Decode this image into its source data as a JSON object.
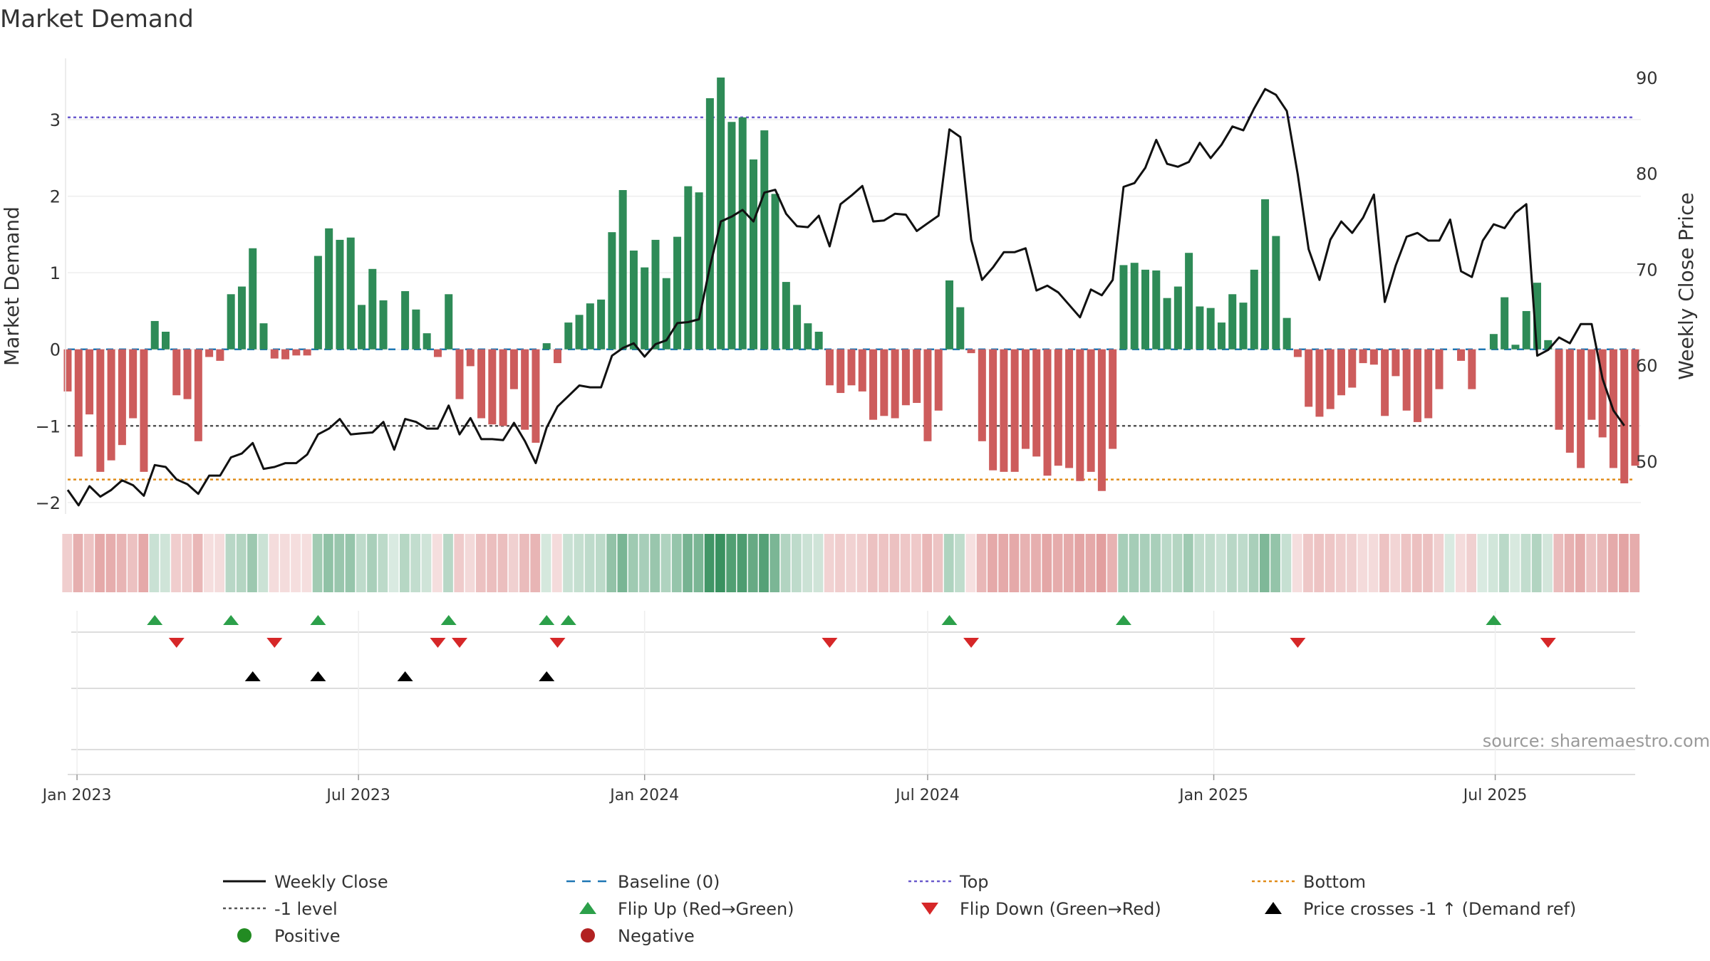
{
  "title": "Market Demand",
  "source": "source: sharemaestro.com",
  "colors": {
    "pos": "#2e8b57",
    "neg": "#cd5c5c",
    "line": "#111111",
    "top": "#6a5acd",
    "bottom": "#e08c1a",
    "ref": "#555555",
    "baseline": "#1f77b4",
    "flip_up": "#2ca04a",
    "flip_down": "#d62728"
  },
  "chart_data": {
    "type": "bar",
    "x_start": "2022-12-26",
    "x_step_days": 7,
    "xticks": [
      {
        "label": "Jan 2023",
        "date": "2023-01-01"
      },
      {
        "label": "Jul 2023",
        "date": "2023-07-01"
      },
      {
        "label": "Jan 2024",
        "date": "2024-01-01"
      },
      {
        "label": "Jul 2024",
        "date": "2024-07-01"
      },
      {
        "label": "Jan 2025",
        "date": "2025-01-01"
      },
      {
        "label": "Jul 2025",
        "date": "2025-07-01"
      }
    ],
    "left_axis": {
      "label": "Market Demand",
      "ylim": [
        -2.15,
        3.8
      ],
      "ticks": [
        -2,
        -1,
        0,
        1,
        2,
        3
      ]
    },
    "right_axis": {
      "label": "Weekly Close Price",
      "ylim": [
        44.5,
        92.0
      ],
      "ticks": [
        50,
        60,
        70,
        80,
        90
      ]
    },
    "top_level": 3.03,
    "bottom_level": -1.7,
    "ref_level": -1.0,
    "demand": [
      -0.55,
      -1.4,
      -0.85,
      -1.6,
      -1.45,
      -1.25,
      -0.9,
      -1.6,
      0.37,
      0.23,
      -0.6,
      -0.65,
      -1.2,
      -0.1,
      -0.15,
      0.72,
      0.82,
      1.32,
      0.34,
      -0.12,
      -0.13,
      -0.08,
      -0.08,
      1.22,
      1.58,
      1.43,
      1.46,
      0.58,
      1.05,
      0.64,
      0.0,
      0.76,
      0.52,
      0.21,
      -0.1,
      0.72,
      -0.65,
      -0.22,
      -0.9,
      -0.98,
      -1.0,
      -0.52,
      -1.05,
      -1.22,
      0.08,
      -0.18,
      0.35,
      0.45,
      0.6,
      0.65,
      1.53,
      2.08,
      1.29,
      1.07,
      1.43,
      0.93,
      1.47,
      2.13,
      2.05,
      3.28,
      3.55,
      2.97,
      3.03,
      2.48,
      2.86,
      2.03,
      0.88,
      0.58,
      0.34,
      0.23,
      -0.47,
      -0.57,
      -0.47,
      -0.55,
      -0.92,
      -0.87,
      -0.9,
      -0.73,
      -0.7,
      -1.2,
      -0.8,
      0.9,
      0.55,
      -0.05,
      -1.2,
      -1.58,
      -1.6,
      -1.6,
      -1.3,
      -1.4,
      -1.65,
      -1.52,
      -1.55,
      -1.72,
      -1.6,
      -1.85,
      -1.3,
      1.1,
      1.13,
      1.04,
      1.03,
      0.67,
      0.82,
      1.26,
      0.56,
      0.54,
      0.35,
      0.72,
      0.61,
      1.04,
      1.96,
      1.48,
      0.41,
      -0.1,
      -0.75,
      -0.88,
      -0.78,
      -0.6,
      -0.5,
      -0.18,
      -0.2,
      -0.87,
      -0.35,
      -0.8,
      -0.95,
      -0.9,
      -0.52,
      0.0,
      -0.15,
      -0.52,
      0.0,
      0.2,
      0.68,
      0.06,
      0.5,
      0.87,
      0.12,
      -1.05,
      -1.35,
      -1.55,
      -0.92,
      -1.15,
      -1.55,
      -1.75,
      -1.52
    ],
    "close": [
      47.0,
      45.4,
      47.4,
      46.3,
      47.0,
      48.0,
      47.5,
      46.4,
      49.6,
      49.4,
      48.1,
      47.6,
      46.6,
      48.5,
      48.5,
      50.4,
      50.8,
      51.9,
      49.2,
      49.4,
      49.8,
      49.8,
      50.7,
      52.8,
      53.4,
      54.4,
      52.8,
      52.9,
      53.0,
      54.1,
      51.2,
      54.4,
      54.1,
      53.4,
      53.4,
      55.8,
      52.8,
      54.5,
      52.3,
      52.3,
      52.2,
      54.0,
      52.1,
      49.8,
      53.5,
      55.7,
      56.8,
      57.9,
      57.7,
      57.7,
      61.0,
      61.8,
      62.3,
      60.9,
      62.2,
      62.6,
      64.4,
      64.5,
      64.8,
      70.3,
      75.0,
      75.5,
      76.2,
      75.0,
      78.0,
      78.3,
      75.8,
      74.5,
      74.4,
      75.6,
      72.4,
      76.8,
      77.7,
      78.7,
      75.0,
      75.1,
      75.8,
      75.7,
      74.0,
      74.8,
      75.6,
      84.6,
      83.8,
      73.1,
      68.9,
      70.2,
      71.8,
      71.8,
      72.2,
      67.8,
      68.3,
      67.6,
      66.3,
      65.0,
      67.9,
      67.3,
      68.9,
      78.6,
      79.0,
      80.6,
      83.5,
      81.0,
      80.7,
      81.2,
      83.2,
      81.6,
      83.0,
      84.9,
      84.5,
      86.8,
      88.8,
      88.2,
      86.5,
      79.9,
      72.1,
      68.9,
      73.1,
      75.0,
      73.8,
      75.4,
      77.8,
      66.6,
      70.4,
      73.4,
      73.8,
      73.0,
      73.0,
      75.2,
      69.8,
      69.2,
      73.0,
      74.7,
      74.3,
      75.9,
      76.8,
      61.0,
      61.6,
      62.9,
      62.3,
      64.3,
      64.3,
      58.6,
      55.3,
      53.7
    ]
  },
  "events": {
    "flip_up_idx": [
      8,
      15,
      23,
      35,
      44,
      46,
      81,
      97,
      131
    ],
    "flip_down_idx": [
      10,
      19,
      34,
      36,
      45,
      70,
      83,
      113,
      136
    ],
    "price_cross_idx": [
      17,
      23,
      31,
      44
    ]
  },
  "legend": [
    {
      "key": "close",
      "label": "Weekly Close",
      "symbol": "line-solid",
      "color": "#111111"
    },
    {
      "key": "baseline",
      "label": "Baseline (0)",
      "symbol": "line-dash",
      "color": "#1f77b4"
    },
    {
      "key": "top",
      "label": "Top",
      "symbol": "line-dot",
      "color": "#6a5acd"
    },
    {
      "key": "bottom",
      "label": "Bottom",
      "symbol": "line-dot",
      "color": "#e08c1a"
    },
    {
      "key": "ref",
      "label": "-1 level",
      "symbol": "line-dot",
      "color": "#555555"
    },
    {
      "key": "flip_up",
      "label": "Flip Up (Red→Green)",
      "symbol": "tri-up",
      "color": "#2ca04a"
    },
    {
      "key": "flip_down",
      "label": "Flip Down (Green→Red)",
      "symbol": "tri-down",
      "color": "#d62728"
    },
    {
      "key": "cross",
      "label": "Price crosses -1 ↑ (Demand ref)",
      "symbol": "tri-up",
      "color": "#000000"
    },
    {
      "key": "positive",
      "label": "Positive",
      "symbol": "circle",
      "color": "#228b22"
    },
    {
      "key": "negative",
      "label": "Negative",
      "symbol": "circle",
      "color": "#b22222"
    }
  ]
}
